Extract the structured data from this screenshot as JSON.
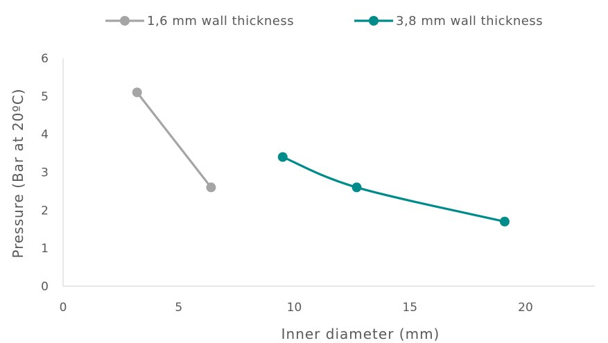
{
  "chart_data": {
    "type": "scatter",
    "title": "",
    "xlabel": "Inner diameter (mm)",
    "ylabel": "Pressure (Bar at 20ºC)",
    "xlim": [
      0,
      23
    ],
    "ylim": [
      0,
      6
    ],
    "xticks": [
      0,
      5,
      10,
      15,
      20
    ],
    "xtick_labels": [
      "0",
      "5",
      "10",
      "15",
      "20"
    ],
    "yticks": [
      0,
      1,
      2,
      3,
      4,
      5,
      6
    ],
    "ytick_labels": [
      "0",
      "1",
      "2",
      "3",
      "4",
      "5",
      "6"
    ],
    "grid": false,
    "legend_position": "top",
    "series": [
      {
        "name": "1,6 mm wall thickness",
        "color": "#a5a5a5",
        "smooth": false,
        "x": [
          3.2,
          6.4
        ],
        "y": [
          5.1,
          2.6
        ]
      },
      {
        "name": "3,8 mm wall thickness",
        "color": "#008b8b",
        "smooth": true,
        "x": [
          9.5,
          12.7,
          19.1
        ],
        "y": [
          3.4,
          2.6,
          1.7
        ]
      }
    ]
  }
}
